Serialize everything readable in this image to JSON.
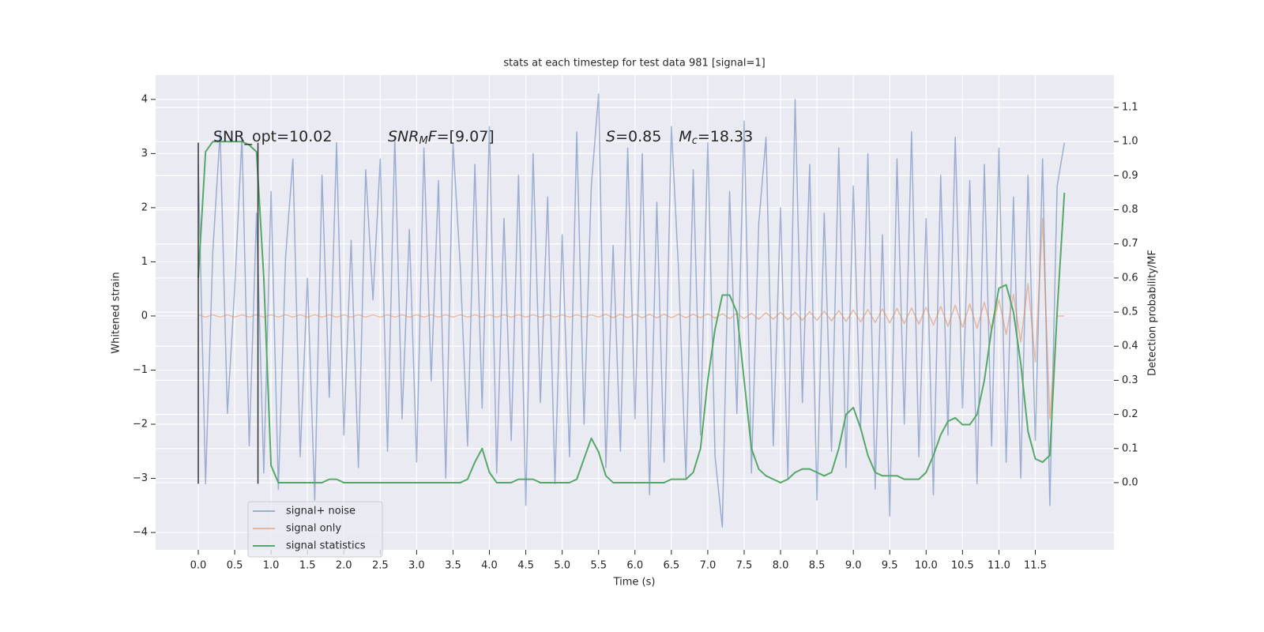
{
  "chart_data": {
    "type": "line",
    "title": "stats at each timestep for test data 981 [signal=1]",
    "xlabel": "Time (s)",
    "ylabel": "Whitened strain",
    "y2label": "Detection probability/MF",
    "x": [
      0,
      0.1,
      0.2,
      0.3,
      0.4,
      0.5,
      0.6,
      0.7,
      0.8,
      0.9,
      1,
      1.1,
      1.2,
      1.3,
      1.4,
      1.5,
      1.6,
      1.7,
      1.8,
      1.9,
      2,
      2.1,
      2.2,
      2.3,
      2.4,
      2.5,
      2.6,
      2.7,
      2.8,
      2.9,
      3,
      3.1,
      3.2,
      3.3,
      3.4,
      3.5,
      3.6,
      3.7,
      3.8,
      3.9,
      4,
      4.1,
      4.2,
      4.3,
      4.4,
      4.5,
      4.6,
      4.7,
      4.8,
      4.9,
      5,
      5.1,
      5.2,
      5.3,
      5.4,
      5.5,
      5.6,
      5.7,
      5.8,
      5.9,
      6,
      6.1,
      6.2,
      6.3,
      6.4,
      6.5,
      6.6,
      6.7,
      6.8,
      6.9,
      7,
      7.1,
      7.2,
      7.3,
      7.4,
      7.5,
      7.6,
      7.7,
      7.8,
      7.9,
      8,
      8.1,
      8.2,
      8.3,
      8.4,
      8.5,
      8.6,
      8.7,
      8.8,
      8.9,
      9,
      9.1,
      9.2,
      9.3,
      9.4,
      9.5,
      9.6,
      9.7,
      9.8,
      9.9,
      10,
      10.1,
      10.2,
      10.3,
      10.4,
      10.5,
      10.6,
      10.7,
      10.8,
      10.9,
      11,
      11.1,
      11.2,
      11.3,
      11.4,
      11.5,
      11.6,
      11.7,
      11.8,
      11.9
    ],
    "series": [
      {
        "name": "signal+ noise",
        "color": "#4c72b0",
        "opacity": 0.5,
        "values": [
          2.8,
          -3.1,
          1.2,
          3.4,
          -1.8,
          0.5,
          3.3,
          -2.4,
          1.9,
          -2.9,
          2.3,
          -3.2,
          1.1,
          2.9,
          -2.6,
          0.7,
          -3.4,
          2.6,
          -1.5,
          3.2,
          -2.2,
          1.4,
          -2.8,
          2.7,
          0.3,
          2.9,
          -2.5,
          3.3,
          -1.9,
          1.6,
          -2.7,
          3.1,
          -1.2,
          2.5,
          -3.0,
          3.2,
          0.9,
          -2.4,
          2.8,
          -1.7,
          3.5,
          -2.9,
          1.8,
          -2.3,
          2.6,
          -3.5,
          3.0,
          -1.6,
          2.2,
          -3.1,
          1.5,
          -2.6,
          3.4,
          -2.0,
          2.4,
          4.1,
          -2.8,
          1.3,
          -2.5,
          3.1,
          -1.9,
          3.0,
          -3.3,
          2.1,
          -2.7,
          3.5,
          0.8,
          -3.0,
          2.7,
          -2.2,
          3.2,
          -2.6,
          -3.9,
          2.3,
          -1.8,
          3.6,
          -2.9,
          1.7,
          3.3,
          -2.4,
          2.0,
          -3.0,
          4.0,
          -1.6,
          2.8,
          -3.4,
          1.9,
          -2.5,
          3.1,
          -2.8,
          2.4,
          -2.1,
          3.0,
          -3.2,
          1.5,
          -3.7,
          2.9,
          -2.0,
          3.4,
          -2.6,
          1.8,
          -3.3,
          2.6,
          -2.2,
          3.3,
          -1.7,
          2.5,
          -3.1,
          2.8,
          -2.4,
          3.1,
          -2.7,
          2.2,
          -3.0,
          2.6,
          -2.3,
          2.9,
          -3.5,
          2.4,
          3.2
        ]
      },
      {
        "name": "signal only",
        "color": "#dd8452",
        "opacity": 0.5,
        "values": [
          0.02,
          -0.02,
          0.02,
          -0.02,
          0.02,
          -0.02,
          0.02,
          -0.02,
          0.02,
          -0.02,
          0.02,
          -0.02,
          0.02,
          -0.02,
          0.02,
          -0.02,
          0.02,
          -0.02,
          0.02,
          -0.02,
          0.02,
          -0.02,
          0.02,
          -0.02,
          0.02,
          -0.02,
          0.02,
          -0.02,
          0.02,
          -0.02,
          0.02,
          -0.02,
          0.02,
          -0.02,
          0.02,
          -0.02,
          0.02,
          -0.02,
          0.02,
          -0.02,
          0.02,
          -0.02,
          0.02,
          -0.02,
          0.02,
          -0.02,
          0.02,
          -0.02,
          0.02,
          -0.02,
          0.02,
          -0.02,
          0.02,
          -0.02,
          0.02,
          -0.02,
          0.03,
          -0.03,
          0.03,
          -0.03,
          0.03,
          -0.03,
          0.03,
          -0.03,
          0.03,
          -0.03,
          0.03,
          -0.03,
          0.03,
          -0.03,
          0.04,
          -0.04,
          0.04,
          -0.05,
          0.05,
          -0.05,
          0.05,
          -0.06,
          0.06,
          -0.06,
          0.07,
          -0.07,
          0.07,
          -0.08,
          0.08,
          -0.08,
          0.09,
          -0.09,
          0.1,
          -0.1,
          0.11,
          -0.11,
          0.12,
          -0.12,
          0.13,
          -0.13,
          0.14,
          -0.14,
          0.15,
          -0.15,
          0.16,
          -0.17,
          0.18,
          -0.19,
          0.2,
          -0.21,
          0.22,
          -0.23,
          0.25,
          -0.27,
          0.3,
          -0.34,
          0.4,
          -0.48,
          0.6,
          -0.85,
          1.8,
          -1.9,
          0,
          0
        ]
      },
      {
        "name": "signal statistics",
        "color": "#55a868",
        "axis": "y2",
        "values": [
          0.6,
          0.97,
          1.0,
          1.0,
          1.0,
          1.0,
          1.0,
          0.99,
          0.97,
          0.6,
          0.05,
          0.0,
          0.0,
          0.0,
          0.0,
          0.0,
          0.0,
          0.0,
          0.01,
          0.01,
          0.0,
          0.0,
          0.0,
          0.0,
          0.0,
          0.0,
          0.0,
          0.0,
          0.0,
          0.0,
          0.0,
          0.0,
          0.0,
          0.0,
          0.0,
          0.0,
          0.0,
          0.01,
          0.06,
          0.1,
          0.03,
          0.0,
          0.0,
          0.0,
          0.01,
          0.01,
          0.01,
          0.0,
          0.0,
          0.0,
          0.0,
          0.0,
          0.01,
          0.07,
          0.13,
          0.09,
          0.02,
          0.0,
          0.0,
          0.0,
          0.0,
          0.0,
          0.0,
          0.0,
          0.0,
          0.01,
          0.01,
          0.01,
          0.03,
          0.1,
          0.3,
          0.45,
          0.55,
          0.55,
          0.5,
          0.3,
          0.1,
          0.04,
          0.02,
          0.01,
          0.0,
          0.01,
          0.03,
          0.04,
          0.04,
          0.03,
          0.02,
          0.03,
          0.1,
          0.2,
          0.22,
          0.16,
          0.08,
          0.03,
          0.02,
          0.02,
          0.02,
          0.01,
          0.01,
          0.01,
          0.03,
          0.08,
          0.14,
          0.18,
          0.19,
          0.17,
          0.17,
          0.2,
          0.3,
          0.45,
          0.57,
          0.58,
          0.5,
          0.35,
          0.15,
          0.07,
          0.06,
          0.08,
          0.5,
          0.85
        ]
      }
    ],
    "vlines": [
      {
        "x": 0,
        "ymin": -3.1,
        "ymax": 3.2,
        "color": "#333333"
      },
      {
        "x": 0.82,
        "ymin": -3.1,
        "ymax": 3.2,
        "color": "#333333"
      }
    ],
    "annotations": [
      [
        {
          "text": "SNR_opt=10.02",
          "style": "normal"
        }
      ],
      [
        {
          "text": "SNR",
          "style": "italic"
        },
        {
          "text": "M",
          "style": "sub"
        },
        {
          "text": "F",
          "style": "italic"
        },
        {
          "text": "=[9.07]",
          "style": "normal"
        }
      ],
      [
        {
          "text": "S",
          "style": "italic"
        },
        {
          "text": "=0.85",
          "style": "normal"
        },
        {
          "text": "M",
          "style": "italic"
        },
        {
          "text": "c",
          "style": "sub"
        },
        {
          "text": "=18.33",
          "style": "normal"
        }
      ]
    ],
    "xlim": [
      -0.586,
      12.58
    ],
    "ylim": [
      -4.32,
      4.45
    ],
    "y2lim": [
      -0.197,
      1.195
    ],
    "xticks": [
      {
        "value": 0,
        "label": "0.0"
      },
      0.5,
      {
        "value": 1,
        "label": "1.0"
      },
      1.5,
      {
        "value": 2,
        "label": "2.0"
      },
      2.5,
      {
        "value": 3,
        "label": "3.0"
      },
      3.5,
      {
        "value": 4,
        "label": "4.0"
      },
      4.5,
      {
        "value": 5,
        "label": "5.0"
      },
      5.5,
      {
        "value": 6,
        "label": "6.0"
      },
      6.5,
      {
        "value": 7,
        "label": "7.0"
      },
      7.5,
      {
        "value": 8,
        "label": "8.0"
      },
      8.5,
      {
        "value": 9,
        "label": "9.0"
      },
      9.5,
      {
        "value": 10,
        "label": "10.0"
      },
      10.5,
      {
        "value": 11,
        "label": "11.0"
      },
      11.5
    ],
    "yticks": [
      {
        "value": -4,
        "label": "−4"
      },
      {
        "value": -3,
        "label": "−3"
      },
      {
        "value": -2,
        "label": "−2"
      },
      {
        "value": -1,
        "label": "−1"
      },
      0,
      1,
      2,
      3,
      4
    ],
    "y2ticks": [
      {
        "value": 0,
        "label": "0.0"
      },
      0.1,
      0.2,
      0.3,
      0.4,
      0.5,
      0.6,
      0.7,
      0.8,
      0.9,
      {
        "value": 1,
        "label": "1.0"
      },
      1.1
    ],
    "grid": true,
    "legend": "lower left"
  }
}
